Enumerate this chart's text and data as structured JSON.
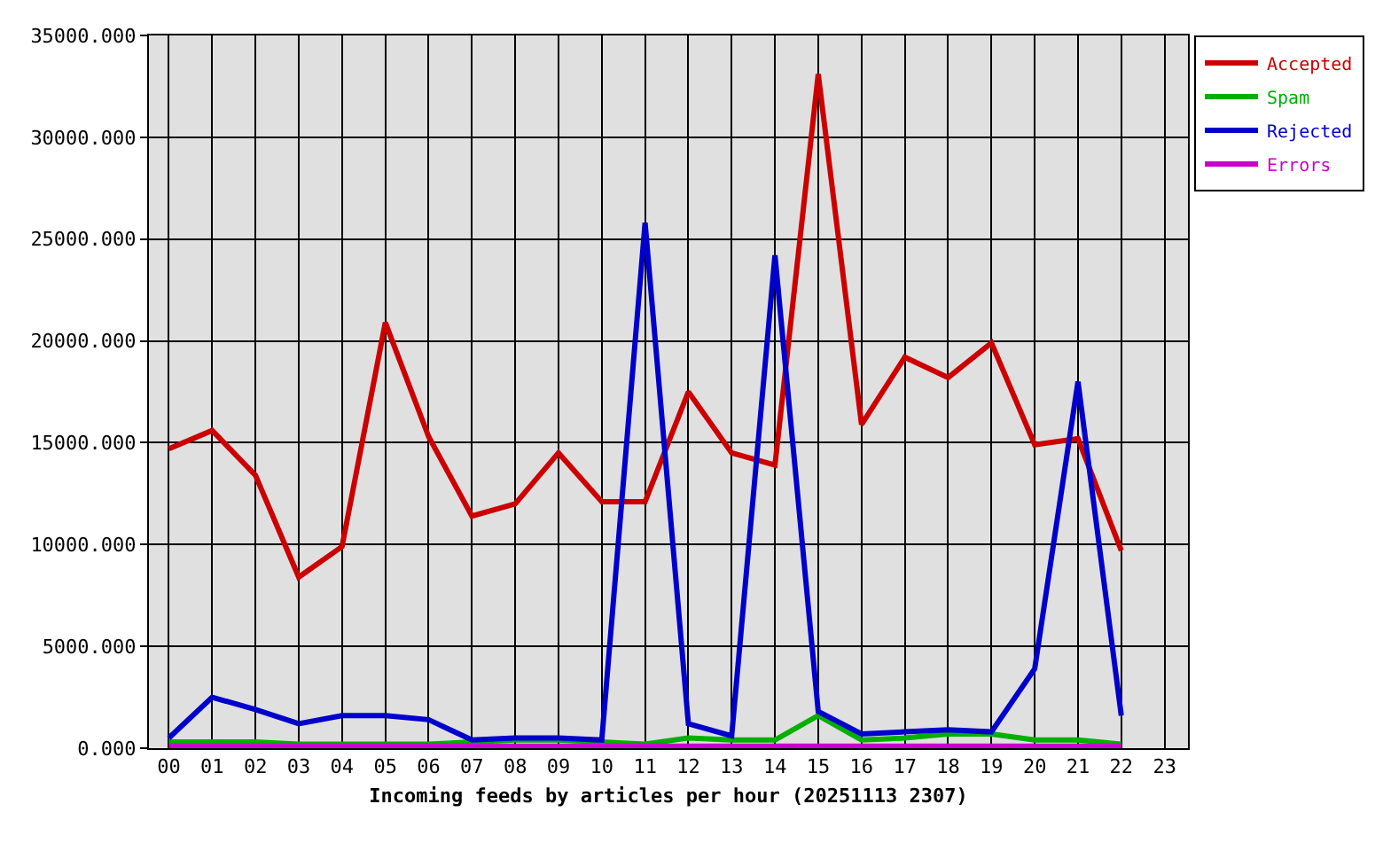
{
  "chart_data": {
    "type": "line",
    "xlabel": "Incoming feeds by articles per hour (20251113 2307)",
    "categories": [
      "00",
      "01",
      "02",
      "03",
      "04",
      "05",
      "06",
      "07",
      "08",
      "09",
      "10",
      "11",
      "12",
      "13",
      "14",
      "15",
      "16",
      "17",
      "18",
      "19",
      "20",
      "21",
      "22",
      "23"
    ],
    "series": [
      {
        "name": "Accepted",
        "color": "#cc0000",
        "values": [
          14700,
          15600,
          13400,
          8400,
          9900,
          20900,
          15300,
          11400,
          12000,
          14500,
          12100,
          12100,
          17500,
          14500,
          13900,
          33100,
          15900,
          19200,
          18200,
          19900,
          14900,
          15200,
          9700,
          null
        ]
      },
      {
        "name": "Spam",
        "color": "#00b000",
        "values": [
          300,
          300,
          300,
          200,
          200,
          200,
          200,
          300,
          400,
          400,
          300,
          200,
          500,
          400,
          400,
          1600,
          400,
          500,
          700,
          700,
          400,
          400,
          200,
          null
        ]
      },
      {
        "name": "Rejected",
        "color": "#0000cc",
        "values": [
          500,
          2500,
          1900,
          1200,
          1600,
          1600,
          1400,
          400,
          500,
          500,
          400,
          25800,
          1200,
          600,
          24200,
          1800,
          700,
          800,
          900,
          800,
          3900,
          18000,
          1600,
          null
        ]
      },
      {
        "name": "Errors",
        "color": "#cc00cc",
        "values": [
          100,
          100,
          100,
          100,
          100,
          100,
          100,
          100,
          100,
          100,
          100,
          100,
          100,
          100,
          100,
          100,
          100,
          100,
          100,
          100,
          100,
          100,
          100,
          null
        ]
      }
    ],
    "ylim": [
      0,
      35000
    ],
    "yticks": [
      {
        "value": 0,
        "label": "0.000"
      },
      {
        "value": 5000,
        "label": "5000.000"
      },
      {
        "value": 10000,
        "label": "10000.000"
      },
      {
        "value": 15000,
        "label": "15000.000"
      },
      {
        "value": 20000,
        "label": "20000.000"
      },
      {
        "value": 25000,
        "label": "25000.000"
      },
      {
        "value": 30000,
        "label": "30000.000"
      },
      {
        "value": 35000,
        "label": "35000.000"
      }
    ],
    "grid": true,
    "legend": "top right"
  }
}
